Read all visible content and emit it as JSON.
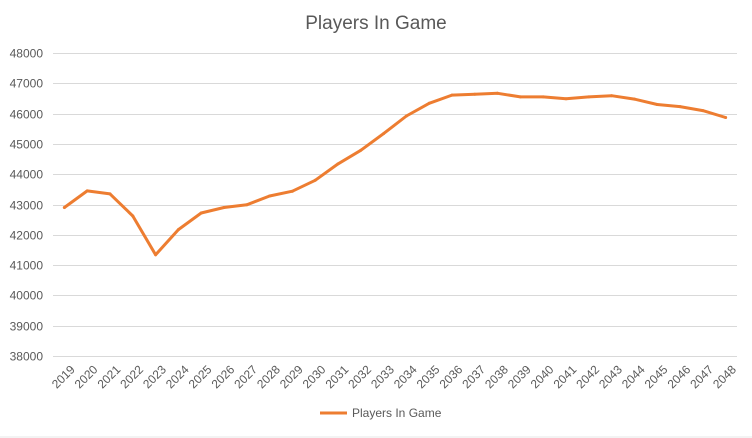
{
  "chart_data": {
    "type": "line",
    "title": "Players In Game",
    "xlabel": "",
    "ylabel": "",
    "categories": [
      "2019",
      "2020",
      "2021",
      "2022",
      "2023",
      "2024",
      "2025",
      "2026",
      "2027",
      "2028",
      "2029",
      "2030",
      "2031",
      "2032",
      "2033",
      "2034",
      "2035",
      "2036",
      "2037",
      "2038",
      "2039",
      "2040",
      "2041",
      "2042",
      "2043",
      "2044",
      "2045",
      "2046",
      "2047",
      "2048"
    ],
    "series": [
      {
        "name": "Players In Game",
        "color": "#ed7d31",
        "values": [
          42900,
          43450,
          43350,
          42620,
          41340,
          42170,
          42720,
          42900,
          42990,
          43280,
          43440,
          43800,
          44340,
          44790,
          45340,
          45920,
          46340,
          46610,
          46640,
          46670,
          46550,
          46550,
          46490,
          46550,
          46590,
          46480,
          46300,
          46230,
          46100,
          45870
        ]
      }
    ],
    "ylim": [
      38000,
      48000
    ],
    "yticks": [
      38000,
      39000,
      40000,
      41000,
      42000,
      43000,
      44000,
      45000,
      46000,
      47000,
      48000
    ],
    "grid": true,
    "legend_position": "bottom"
  },
  "colors": {
    "line": "#ed7d31",
    "grid": "#d9d9d9",
    "text": "#595959"
  }
}
